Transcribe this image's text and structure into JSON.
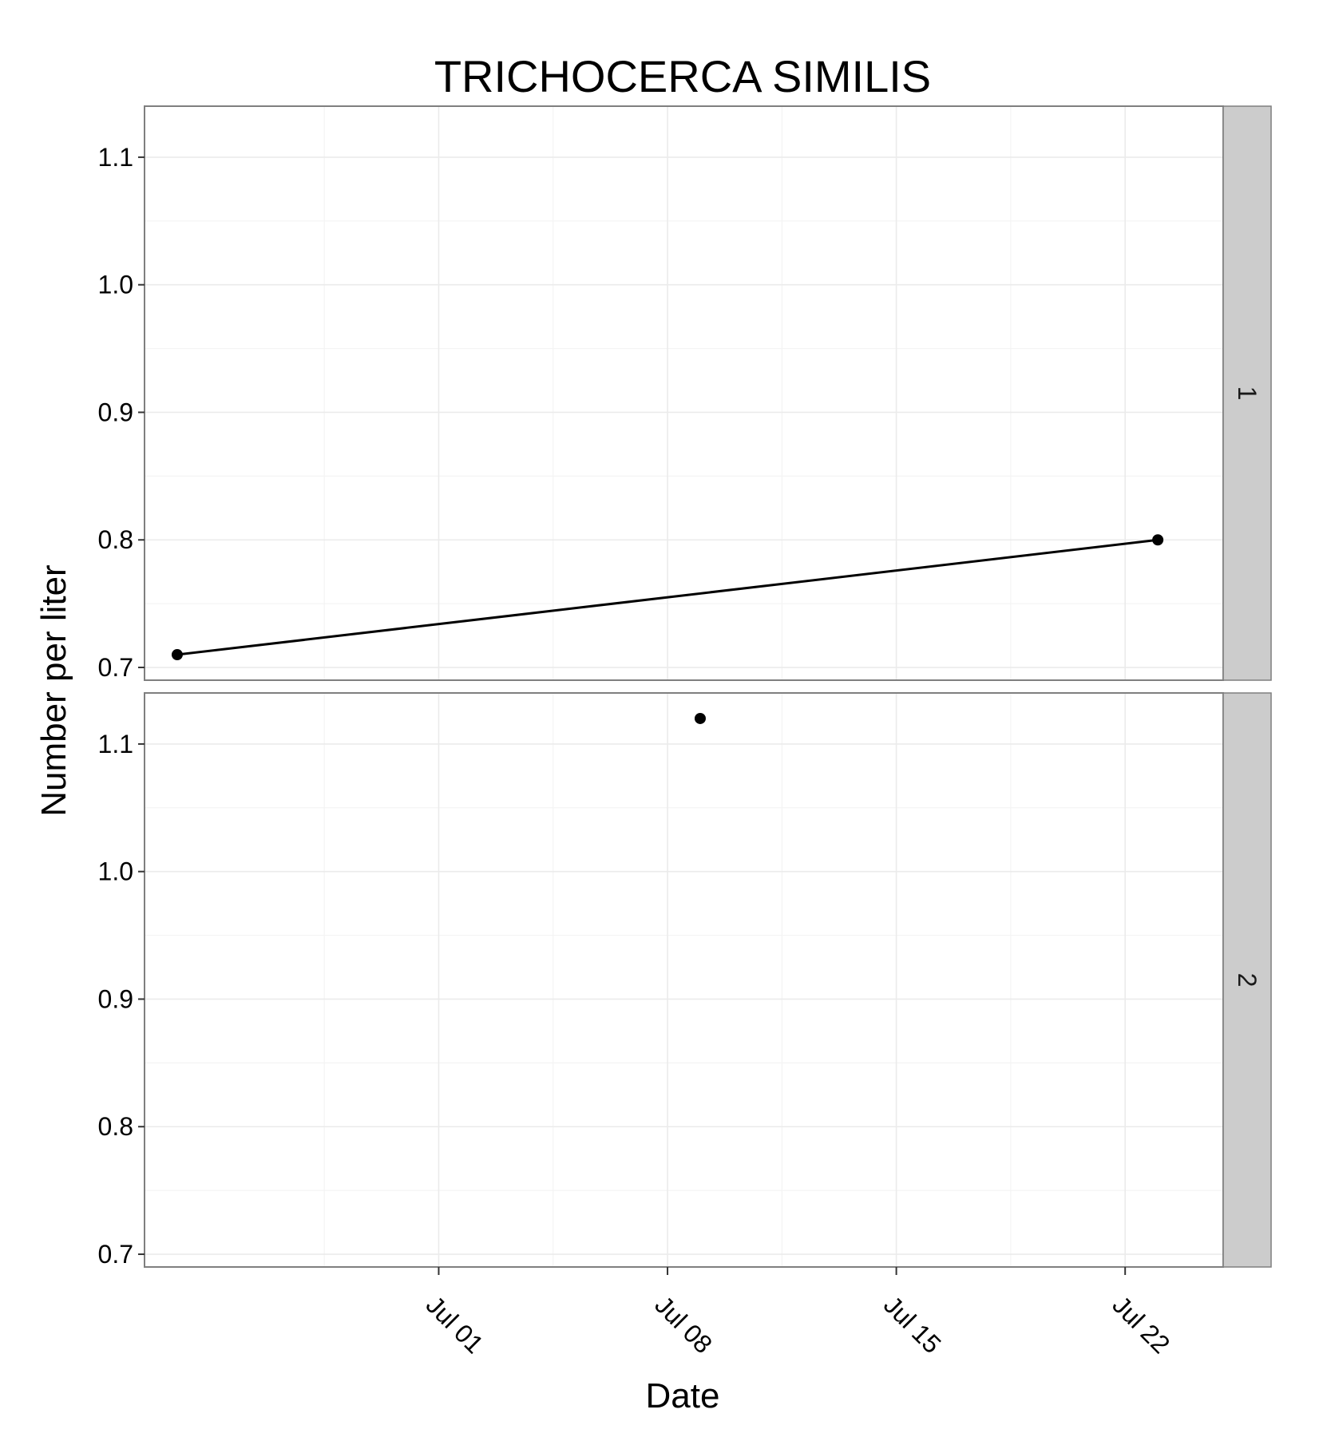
{
  "chart_data": {
    "type": "line",
    "title": "TRICHOCERCA SIMILIS",
    "xlabel": "Date",
    "ylabel": "Number per liter",
    "x_type": "date",
    "xlim": [
      "2014-06-22",
      "2014-07-25"
    ],
    "x_ticks": [
      "2014-07-01",
      "2014-07-08",
      "2014-07-15",
      "2014-07-22"
    ],
    "x_tick_labels": [
      "Jul 01",
      "Jul 08",
      "Jul 15",
      "Jul 22"
    ],
    "ylim": [
      0.69,
      1.14
    ],
    "y_ticks": [
      0.7,
      0.8,
      0.9,
      1.0,
      1.1
    ],
    "y_tick_labels": [
      "0.7",
      "0.8",
      "0.9",
      "1.0",
      "1.1"
    ],
    "grid": true,
    "panel_background": "#ffffff",
    "grid_color": "#ebebeb",
    "strip_fill": "#cccccc",
    "mark_color": "#000000",
    "facets": [
      {
        "label": "1",
        "x": [
          "2014-06-23",
          "2014-07-23"
        ],
        "y": [
          0.71,
          0.8
        ]
      },
      {
        "label": "2",
        "x": [
          "2014-07-09"
        ],
        "y": [
          1.12
        ]
      }
    ]
  }
}
